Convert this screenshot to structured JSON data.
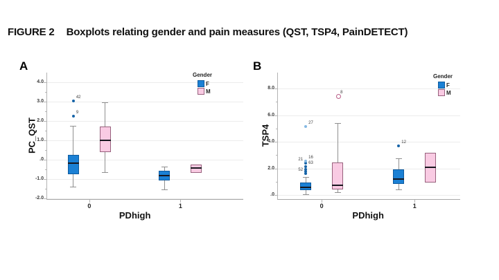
{
  "figure": {
    "label": "FIGURE 2",
    "title": "Boxplots relating gender and pain measures (QST, TSP4, PainDETECT)"
  },
  "colors": {
    "F": "#1b80d4",
    "F_border": "#0e5a9e",
    "M": "#f9cbe3",
    "M_border": "#97607c",
    "median": "#16161e",
    "whisker": "#8f8f8f",
    "outlier": "#1664a8",
    "extreme": "#85b9e3",
    "open_outlier": "#b85c86",
    "grid": "#ececec",
    "axis": "#b3b3b3"
  },
  "chart_data": [
    {
      "type": "boxplot",
      "panel_label": "A",
      "ylabel": "PC_QST",
      "xlabel": "PDhigh",
      "ylim": [
        -2.0,
        4.5
      ],
      "grid": true,
      "legend": {
        "title": "Gender",
        "position": "top-right",
        "entries": [
          {
            "label": "F",
            "color": "#1b80d4"
          },
          {
            "label": "M",
            "color": "#f9cbe3"
          }
        ]
      },
      "yticks": [
        {
          "value": 4.0,
          "label": "4.0"
        },
        {
          "value": 3.0,
          "label": "3.0"
        },
        {
          "value": 2.0,
          "label": "2.0"
        },
        {
          "value": 1.0,
          "label": "1.0"
        },
        {
          "value": 0.0,
          "label": ".0"
        },
        {
          "value": -1.0,
          "label": "-1.0"
        },
        {
          "value": -2.0,
          "label": "-2.0"
        }
      ],
      "categories": [
        "0",
        "1"
      ],
      "boxes": [
        {
          "gender": "F",
          "category": "0",
          "whisker_low": -1.4,
          "q1": -0.75,
          "median": -0.2,
          "q3": 0.25,
          "whisker_high": 1.75,
          "outliers": [
            {
              "value": 2.25,
              "label": "9"
            },
            {
              "value": 3.05,
              "label": "42"
            }
          ]
        },
        {
          "gender": "M",
          "category": "0",
          "whisker_low": -0.65,
          "q1": 0.4,
          "median": 1.0,
          "q3": 1.7,
          "whisker_high": 2.95,
          "outliers": []
        },
        {
          "gender": "F",
          "category": "1",
          "whisker_low": -1.55,
          "q1": -1.1,
          "median": -0.85,
          "q3": -0.6,
          "whisker_high": -0.35,
          "outliers": []
        },
        {
          "gender": "M",
          "category": "1",
          "whisker_low": -0.7,
          "q1": -0.7,
          "median": -0.45,
          "q3": -0.25,
          "whisker_high": -0.25,
          "outliers": []
        }
      ]
    },
    {
      "type": "boxplot",
      "panel_label": "B",
      "ylabel": "TSP4",
      "xlabel": "PDhigh",
      "ylim": [
        0.0,
        8.5
      ],
      "grid": true,
      "legend": {
        "title": "Gender",
        "position": "top-right",
        "entries": [
          {
            "label": "F",
            "color": "#1b80d4"
          },
          {
            "label": "M",
            "color": "#f9cbe3"
          }
        ]
      },
      "yticks": [
        {
          "value": 8.0,
          "label": "8.0"
        },
        {
          "value": 6.0,
          "label": "6.0"
        },
        {
          "value": 4.0,
          "label": "4.0"
        },
        {
          "value": 2.0,
          "label": "2.0"
        },
        {
          "value": 0.0,
          "label": ".0"
        }
      ],
      "categories": [
        "0",
        "1"
      ],
      "boxes": [
        {
          "gender": "F",
          "category": "0",
          "whisker_low": 0.05,
          "q1": 0.35,
          "median": 0.6,
          "q3": 0.95,
          "whisker_high": 1.35,
          "outliers": [
            {
              "value": 1.6,
              "label": "52",
              "side": "left"
            },
            {
              "value": 1.8
            },
            {
              "value": 1.95
            },
            {
              "value": 2.15,
              "label": "63"
            },
            {
              "value": 2.4,
              "label": "21",
              "side": "left"
            },
            {
              "value": 2.55,
              "label": "16",
              "type": "extreme"
            },
            {
              "value": 5.15,
              "label": "27",
              "type": "extreme"
            }
          ]
        },
        {
          "gender": "M",
          "category": "0",
          "whisker_low": 0.2,
          "q1": 0.45,
          "median": 0.75,
          "q3": 2.45,
          "whisker_high": 5.4,
          "outliers": [
            {
              "value": 7.45,
              "label": "8",
              "type": "open"
            }
          ]
        },
        {
          "gender": "F",
          "category": "1",
          "whisker_low": 0.45,
          "q1": 0.85,
          "median": 1.2,
          "q3": 1.95,
          "whisker_high": 2.75,
          "outliers": [
            {
              "value": 3.7,
              "label": "12"
            }
          ]
        },
        {
          "gender": "M",
          "category": "1",
          "whisker_low": 0.95,
          "q1": 0.95,
          "median": 2.1,
          "q3": 3.2,
          "whisker_high": 3.2,
          "outliers": []
        }
      ]
    }
  ]
}
